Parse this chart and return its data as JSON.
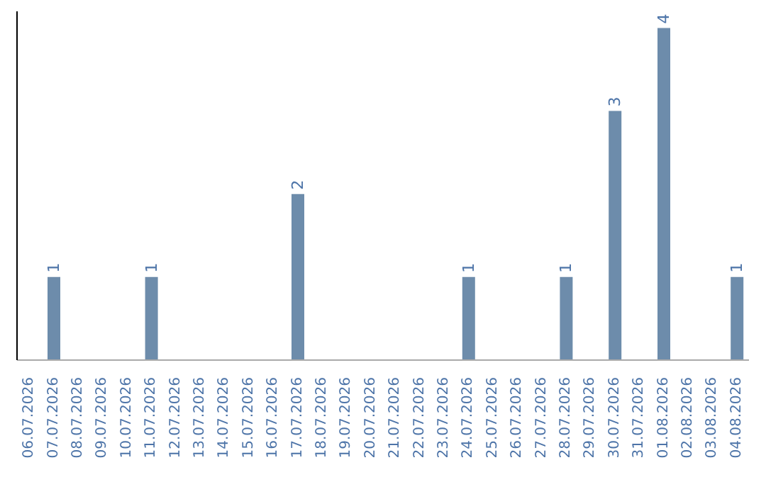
{
  "chart_data": {
    "type": "bar",
    "categories": [
      "06.07.2026",
      "07.07.2026",
      "08.07.2026",
      "09.07.2026",
      "10.07.2026",
      "11.07.2026",
      "12.07.2026",
      "13.07.2026",
      "14.07.2026",
      "15.07.2026",
      "16.07.2026",
      "17.07.2026",
      "18.07.2026",
      "19.07.2026",
      "20.07.2026",
      "21.07.2026",
      "22.07.2026",
      "23.07.2026",
      "24.07.2026",
      "25.07.2026",
      "26.07.2026",
      "27.07.2026",
      "28.07.2026",
      "29.07.2026",
      "30.07.2026",
      "31.07.2026",
      "01.08.2026",
      "02.08.2026",
      "03.08.2026",
      "04.08.2026"
    ],
    "values": [
      0,
      1,
      0,
      0,
      0,
      1,
      0,
      0,
      0,
      0,
      0,
      2,
      0,
      0,
      0,
      0,
      0,
      0,
      1,
      0,
      0,
      0,
      1,
      0,
      3,
      0,
      4,
      0,
      0,
      1
    ],
    "value_labels": [
      null,
      "1",
      null,
      null,
      null,
      "1",
      null,
      null,
      null,
      null,
      null,
      "2",
      null,
      null,
      null,
      null,
      null,
      null,
      "1",
      null,
      null,
      null,
      "1",
      null,
      "3",
      null,
      "4",
      null,
      null,
      "1"
    ],
    "color": "#6d8cab",
    "tick_labels": "x",
    "grid": false,
    "legend": false
  }
}
